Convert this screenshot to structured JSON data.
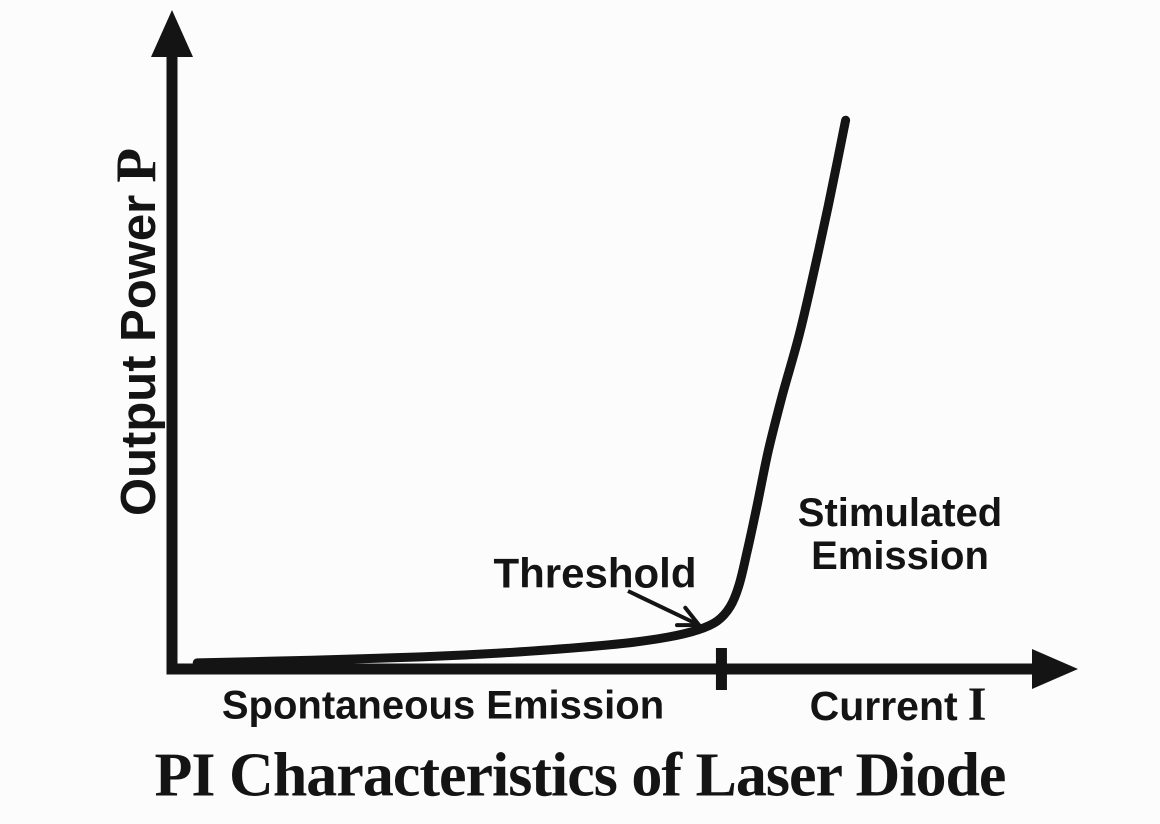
{
  "title": "PI Characteristics of Laser Diode",
  "colors": {
    "ink": "#141414",
    "background": "#fcfcfc"
  },
  "axes": {
    "y": {
      "label": "Output Power",
      "symbol": "P"
    },
    "x": {
      "label": "Current",
      "symbol": "I"
    }
  },
  "annotations": {
    "threshold": "Threshold",
    "stimulated_line1": "Stimulated",
    "stimulated_line2": "Emission",
    "spontaneous": "Spontaneous Emission"
  },
  "chart_data": {
    "type": "line",
    "title": "PI Characteristics of Laser Diode",
    "xlabel": "Current I",
    "ylabel": "Output Power P",
    "x_range": [
      0,
      1
    ],
    "y_range": [
      0,
      1
    ],
    "units": "arbitrary units (no numeric tick labels shown)",
    "grid": false,
    "legend": false,
    "threshold_x": 0.633,
    "series": [
      {
        "name": "Laser diode P-I curve",
        "x": [
          0.029,
          0.161,
          0.287,
          0.379,
          0.46,
          0.523,
          0.572,
          0.606,
          0.628,
          0.643,
          0.653,
          0.662,
          0.674,
          0.687,
          0.703,
          0.724,
          0.745,
          0.761,
          0.776
        ],
        "y": [
          0.011,
          0.016,
          0.022,
          0.029,
          0.038,
          0.047,
          0.058,
          0.071,
          0.087,
          0.113,
          0.151,
          0.209,
          0.296,
          0.396,
          0.496,
          0.615,
          0.76,
          0.878,
          0.996
        ]
      }
    ],
    "regions": [
      {
        "label": "Spontaneous Emission",
        "x_range": [
          0,
          0.633
        ]
      },
      {
        "label": "Stimulated Emission",
        "x_range": [
          0.633,
          1
        ]
      }
    ],
    "annotations": [
      {
        "text": "Threshold",
        "points_to": "knee of curve at threshold current (tick on x-axis)"
      },
      {
        "text": "Stimulated Emission",
        "position": "right of steep rising segment"
      },
      {
        "text": "Spontaneous Emission",
        "position": "below x-axis, left of threshold tick"
      }
    ]
  }
}
